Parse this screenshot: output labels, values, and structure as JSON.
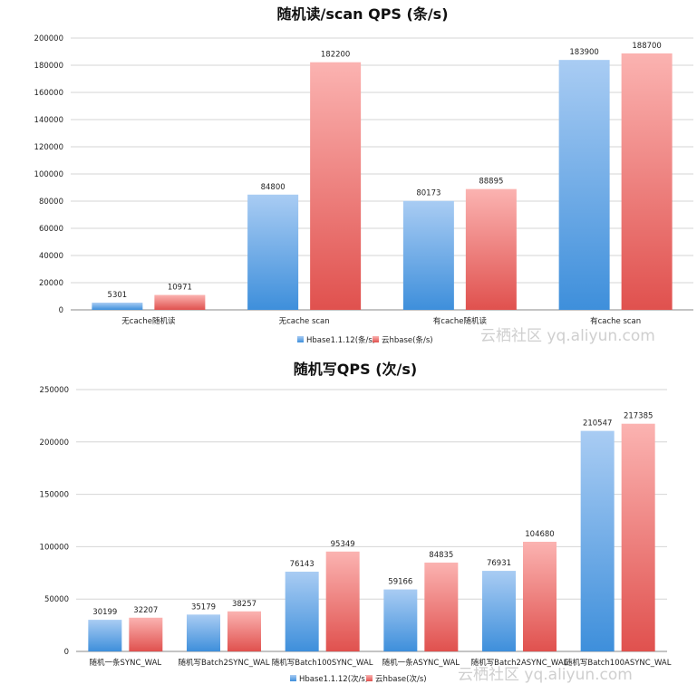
{
  "chart_data": [
    {
      "type": "bar",
      "title": "随机读/scan QPS (条/s)",
      "categories": [
        "无cache随机读",
        "无cache scan",
        "有cache随机读",
        "有cache scan"
      ],
      "series": [
        {
          "name": "Hbase1.1.12(条/s)",
          "values": [
            5301,
            84800,
            80173,
            183900
          ]
        },
        {
          "name": "云hbase(条/s)",
          "values": [
            10971,
            182200,
            88895,
            188700
          ]
        }
      ],
      "yticks": [
        0,
        20000,
        40000,
        60000,
        80000,
        100000,
        120000,
        140000,
        160000,
        180000,
        200000
      ],
      "ylim": [
        0,
        200000
      ],
      "grid": true,
      "legend": "bottom"
    },
    {
      "type": "bar",
      "title": "随机写QPS (次/s)",
      "categories": [
        "随机一条SYNC_WAL",
        "随机写Batch2SYNC_WAL",
        "随机写Batch100SYNC_WAL",
        "随机一条ASYNC_WAL",
        "随机写Batch2ASYNC_WAL",
        "随机写Batch100ASYNC_WAL"
      ],
      "series": [
        {
          "name": "Hbase1.1.12(次/s)",
          "values": [
            30199,
            35179,
            76143,
            59166,
            76931,
            210547
          ]
        },
        {
          "name": "云hbase(次/s)",
          "values": [
            32207,
            38257,
            95349,
            84835,
            104680,
            217385
          ]
        }
      ],
      "yticks": [
        0,
        50000,
        100000,
        150000,
        200000,
        250000
      ],
      "ylim": [
        0,
        250000
      ],
      "grid": true,
      "legend": "bottom"
    }
  ],
  "colors": {
    "blue_top": "#a9ccf3",
    "blue_bottom": "#3e8fdb",
    "red_top": "#fbb3b1",
    "red_bottom": "#e0514e"
  },
  "watermark": "云栖社区 yq.aliyun.com"
}
